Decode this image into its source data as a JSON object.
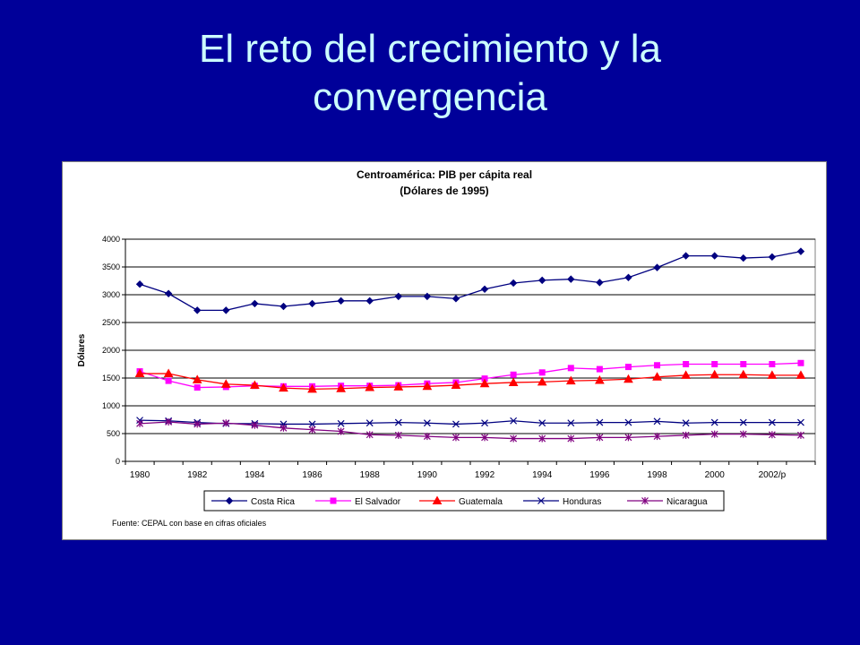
{
  "slide": {
    "title_line1": "El reto del crecimiento y la",
    "title_line2": "convergencia"
  },
  "chart_data": {
    "type": "line",
    "title": "Centroamérica: PIB  per cápita real",
    "subtitle": "(Dólares de 1995)",
    "ylabel": "Dólares",
    "xlabel": "",
    "ylim": [
      0,
      4000
    ],
    "yticks": [
      0,
      500,
      1000,
      1500,
      2000,
      2500,
      3000,
      3500,
      4000
    ],
    "x": [
      "1980",
      "1981",
      "1982",
      "1983",
      "1984",
      "1985",
      "1986",
      "1987",
      "1988",
      "1989",
      "1990",
      "1991",
      "1992",
      "1993",
      "1994",
      "1995",
      "1996",
      "1997",
      "1998",
      "1999",
      "2000",
      "2001",
      "2002",
      "2003"
    ],
    "xtick_labels": [
      "1980",
      "1982",
      "1984",
      "1986",
      "1988",
      "1990",
      "1992",
      "1994",
      "1996",
      "1998",
      "2000",
      "2002/p"
    ],
    "grid": "horizontal",
    "legend_position": "bottom",
    "series": [
      {
        "name": "Costa Rica",
        "color": "#000080",
        "marker": "diamond",
        "values": [
          3190,
          3020,
          2720,
          2720,
          2840,
          2790,
          2840,
          2890,
          2890,
          2970,
          2970,
          2930,
          3100,
          3210,
          3260,
          3280,
          3220,
          3310,
          3490,
          3700,
          3700,
          3660,
          3680,
          3780
        ]
      },
      {
        "name": "El Salvador",
        "color": "#ff00ff",
        "marker": "square",
        "values": [
          1620,
          1450,
          1330,
          1340,
          1360,
          1350,
          1350,
          1360,
          1360,
          1370,
          1400,
          1420,
          1490,
          1560,
          1600,
          1680,
          1660,
          1700,
          1730,
          1750,
          1750,
          1750,
          1750,
          1770
        ]
      },
      {
        "name": "Guatemala",
        "color": "#ff0000",
        "marker": "triangle",
        "values": [
          1580,
          1580,
          1470,
          1390,
          1370,
          1320,
          1300,
          1310,
          1330,
          1340,
          1350,
          1370,
          1400,
          1420,
          1430,
          1450,
          1460,
          1480,
          1520,
          1550,
          1560,
          1560,
          1550,
          1550
        ]
      },
      {
        "name": "Honduras",
        "color": "#000080",
        "marker": "x",
        "values": [
          740,
          730,
          700,
          680,
          680,
          670,
          670,
          680,
          690,
          700,
          690,
          670,
          690,
          730,
          690,
          690,
          700,
          700,
          720,
          690,
          700,
          700,
          700,
          700
        ]
      },
      {
        "name": "Nicaragua",
        "color": "#800080",
        "marker": "star",
        "values": [
          680,
          710,
          670,
          690,
          650,
          600,
          570,
          540,
          480,
          470,
          450,
          430,
          430,
          410,
          410,
          410,
          430,
          430,
          450,
          470,
          490,
          490,
          480,
          470
        ]
      }
    ],
    "source": "Fuente:  CEPAL con base en cifras oficiales"
  }
}
